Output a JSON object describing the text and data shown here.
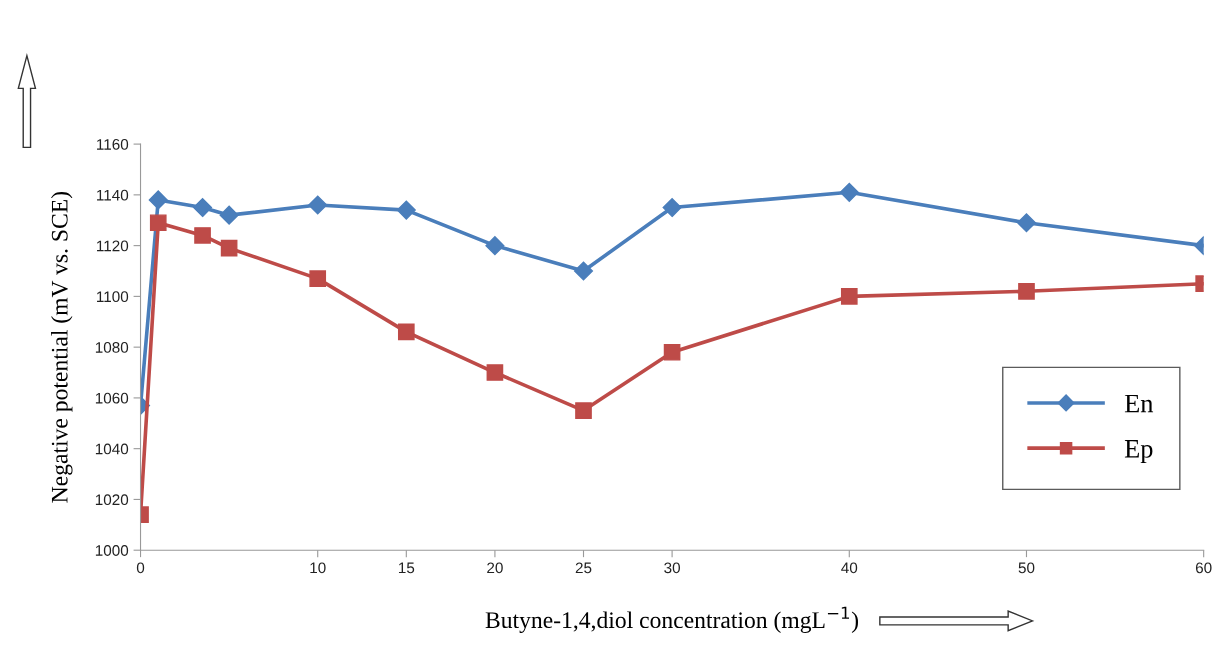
{
  "chart_data": {
    "type": "line",
    "xlabel": "Butyne-1,4,diol concentration (mgL$^{−1}$)",
    "ylabel": "Negative potential (mV vs. SCE)",
    "x": [
      0,
      1,
      3.5,
      5,
      10,
      15,
      20,
      25,
      30,
      40,
      50,
      60
    ],
    "series": [
      {
        "name": "En",
        "color": "#4a7ebb",
        "marker": "diamond",
        "values": [
          1057,
          1138,
          1135,
          1132,
          1136,
          1134,
          1120,
          1110,
          1135,
          1141,
          1129,
          1120
        ]
      },
      {
        "name": "Ep",
        "color": "#be4b48",
        "marker": "square",
        "values": [
          1014,
          1129,
          1124,
          1119,
          1107,
          1086,
          1070,
          1055,
          1078,
          1100,
          1102,
          1105
        ]
      }
    ],
    "xlim": [
      0,
      60
    ],
    "xticks": [
      0,
      10,
      15,
      20,
      25,
      30,
      40,
      50,
      60
    ],
    "ylim": [
      1000,
      1160
    ],
    "yticks": [
      1000,
      1020,
      1040,
      1060,
      1080,
      1100,
      1120,
      1140,
      1160
    ],
    "grid": false,
    "legend": "right"
  }
}
